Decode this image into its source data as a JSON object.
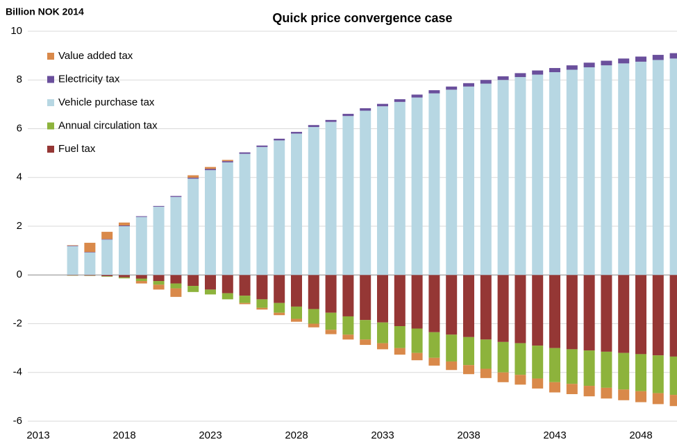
{
  "chart_data": {
    "type": "bar",
    "stacked": true,
    "title": "Quick price convergence case",
    "y_label": "Billion NOK 2014",
    "categories": [
      "2013",
      null,
      null,
      null,
      null,
      "2018",
      null,
      null,
      null,
      null,
      "2023",
      null,
      null,
      null,
      null,
      "2028",
      null,
      null,
      null,
      null,
      "2033",
      null,
      null,
      null,
      null,
      "2038",
      null,
      null,
      null,
      null,
      "2043",
      null,
      null,
      null,
      null,
      "2048",
      null,
      null
    ],
    "series": [
      {
        "name": "Fuel tax",
        "color": "#953735",
        "values": [
          null,
          null,
          -0.02,
          -0.03,
          -0.05,
          -0.1,
          -0.15,
          -0.25,
          -0.35,
          -0.45,
          -0.6,
          -0.75,
          -0.85,
          -1.0,
          -1.15,
          -1.3,
          -1.4,
          -1.55,
          -1.7,
          -1.85,
          -1.95,
          -2.1,
          -2.2,
          -2.35,
          -2.45,
          -2.55,
          -2.65,
          -2.75,
          -2.8,
          -2.9,
          -3.0,
          -3.05,
          -3.1,
          -3.15,
          -3.2,
          -3.25,
          -3.3,
          -3.35
        ]
      },
      {
        "name": "Annual circulation tax",
        "color": "#8db33c",
        "values": [
          null,
          null,
          -0.01,
          -0.01,
          -0.02,
          -0.04,
          -0.1,
          -0.15,
          -0.2,
          -0.25,
          -0.2,
          -0.25,
          -0.3,
          -0.35,
          -0.4,
          -0.5,
          -0.6,
          -0.7,
          -0.75,
          -0.8,
          -0.85,
          -0.9,
          -1.0,
          -1.05,
          -1.1,
          -1.15,
          -1.2,
          -1.25,
          -1.3,
          -1.35,
          -1.4,
          -1.42,
          -1.45,
          -1.48,
          -1.5,
          -1.52,
          -1.55,
          -1.57
        ]
      },
      {
        "name": "Vehicle purchase tax",
        "color": "#b7d7e3",
        "values": [
          null,
          null,
          1.18,
          0.92,
          1.45,
          2.0,
          2.38,
          2.8,
          3.2,
          3.95,
          4.3,
          4.62,
          4.97,
          5.25,
          5.52,
          5.8,
          6.07,
          6.28,
          6.52,
          6.74,
          6.92,
          7.1,
          7.28,
          7.45,
          7.6,
          7.73,
          7.85,
          8.0,
          8.12,
          8.22,
          8.32,
          8.42,
          8.52,
          8.6,
          8.68,
          8.75,
          8.82,
          8.88
        ]
      },
      {
        "name": "Electricity tax",
        "color": "#6a4f9c",
        "values": [
          null,
          null,
          0.02,
          0.02,
          0.02,
          0.03,
          0.03,
          0.03,
          0.04,
          0.04,
          0.05,
          0.05,
          0.06,
          0.06,
          0.07,
          0.07,
          0.08,
          0.08,
          0.09,
          0.1,
          0.1,
          0.11,
          0.12,
          0.13,
          0.13,
          0.14,
          0.15,
          0.15,
          0.16,
          0.17,
          0.17,
          0.18,
          0.19,
          0.19,
          0.2,
          0.21,
          0.21,
          0.22
        ]
      },
      {
        "name": "Value added tax",
        "color": "#d9894a",
        "values": [
          null,
          null,
          0.02,
          0.38,
          0.3,
          0.12,
          -0.1,
          -0.2,
          -0.35,
          0.1,
          0.08,
          0.05,
          -0.05,
          -0.07,
          -0.1,
          -0.12,
          -0.15,
          -0.18,
          -0.2,
          -0.22,
          -0.25,
          -0.27,
          -0.3,
          -0.32,
          -0.35,
          -0.37,
          -0.38,
          -0.4,
          -0.4,
          -0.41,
          -0.42,
          -0.42,
          -0.43,
          -0.44,
          -0.44,
          -0.45,
          -0.45,
          -0.46
        ]
      }
    ],
    "ylim": [
      -6,
      10
    ],
    "yticks": [
      -6,
      -4,
      -2,
      0,
      2,
      4,
      6,
      8,
      10
    ],
    "grid": true,
    "legend": "upper left"
  }
}
